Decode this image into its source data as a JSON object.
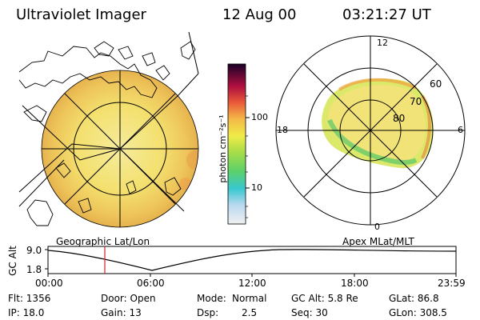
{
  "header": {
    "instrument": "Ultraviolet Imager",
    "date": "12 Aug 00",
    "time": "03:21:27 UT"
  },
  "left_panel": {
    "caption": "Geographic Lat/Lon"
  },
  "right_panel": {
    "caption": "Apex MLat/MLT",
    "mlt_labels": [
      "12",
      "18",
      "6",
      "0"
    ],
    "mlat_labels": [
      "60",
      "70",
      "80"
    ]
  },
  "colorbar": {
    "unit_label": "photon cm⁻²s⁻¹",
    "tick_labels": [
      "100",
      "10"
    ],
    "colors": [
      "#d8d8e8",
      "#38c8d0",
      "#7ed85a",
      "#d2e64a",
      "#f3eb45",
      "#f0b04a",
      "#e04040",
      "#b01040",
      "#2a0030"
    ]
  },
  "altitude_plot": {
    "ylabel": "GC Alt",
    "y_ticks": [
      "9.0",
      "1.8"
    ],
    "x_ticks": [
      "00:00",
      "06:00",
      "12:00",
      "18:00",
      "23:59"
    ],
    "marker_color": "#d02020"
  },
  "info": {
    "flt": "Flt: 1356",
    "ip": "IP: 18.0",
    "door": "Door: Open",
    "gain": "Gain: 13",
    "mode_label": "Mode:",
    "mode_value": "Normal",
    "dsp_label": "Dsp:",
    "dsp_value": "2.5",
    "gc_alt": "GC Alt: 5.8 Re",
    "seq": "Seq: 30",
    "glat": "GLat: 86.8",
    "glon": "GLon: 308.5"
  }
}
